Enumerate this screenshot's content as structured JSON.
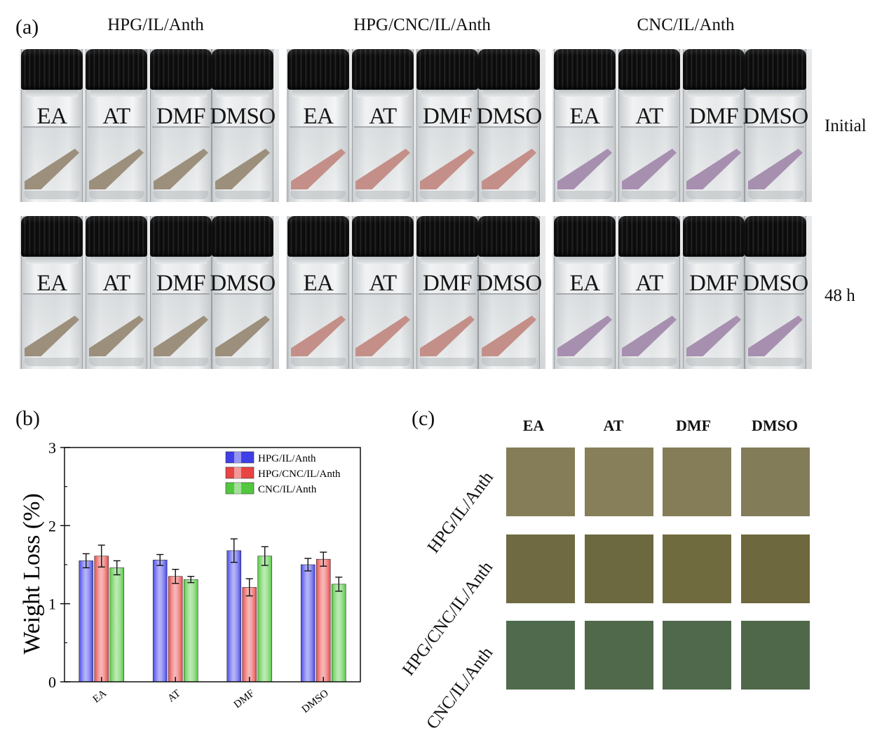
{
  "panel_a": {
    "label": "(a)",
    "groups": [
      "HPG/IL/Anth",
      "HPG/CNC/IL/Anth",
      "CNC/IL/Anth"
    ],
    "rows": [
      "Initial",
      "48 h"
    ],
    "solvents": [
      "EA",
      "AT",
      "DMF",
      "DMSO"
    ],
    "film_colors": {
      "HPG/IL/Anth": "#9c8f7c",
      "HPG/CNC/IL/Anth": "#c48f88",
      "CNC/IL/Anth": "#a78fb0"
    }
  },
  "panel_b": {
    "label": "(b)"
  },
  "panel_c": {
    "label": "(c)",
    "columns": [
      "EA",
      "AT",
      "DMF",
      "DMSO"
    ],
    "rows": [
      "HPG/IL/Anth",
      "HPG/CNC/IL/Anth",
      "CNC/IL/Anth"
    ],
    "colors": [
      [
        "#847d58",
        "#867f5a",
        "#847d58",
        "#837c58"
      ],
      [
        "#6f6a41",
        "#6c6840",
        "#706b3e",
        "#6d683d"
      ],
      [
        "#4f6a4c",
        "#50694b",
        "#50694c",
        "#4f684a"
      ]
    ]
  },
  "chart_data": {
    "type": "bar",
    "ylabel": "Weight Loss (%)",
    "ylim": [
      0,
      3
    ],
    "yticks": [
      "0",
      "1",
      "2",
      "3"
    ],
    "categories": [
      "EA",
      "AT",
      "DMF",
      "DMSO"
    ],
    "legend_position": "top-right",
    "series": [
      {
        "name": "HPG/IL/Anth",
        "color": "#3f3fe8",
        "values": [
          1.55,
          1.56,
          1.68,
          1.5
        ],
        "errors": [
          0.09,
          0.07,
          0.15,
          0.08
        ]
      },
      {
        "name": "HPG/CNC/IL/Anth",
        "color": "#e84444",
        "values": [
          1.61,
          1.35,
          1.21,
          1.57
        ],
        "errors": [
          0.14,
          0.09,
          0.11,
          0.09
        ]
      },
      {
        "name": "CNC/IL/Anth",
        "color": "#52c83e",
        "values": [
          1.46,
          1.31,
          1.61,
          1.25
        ],
        "errors": [
          0.09,
          0.04,
          0.12,
          0.09
        ]
      }
    ]
  }
}
